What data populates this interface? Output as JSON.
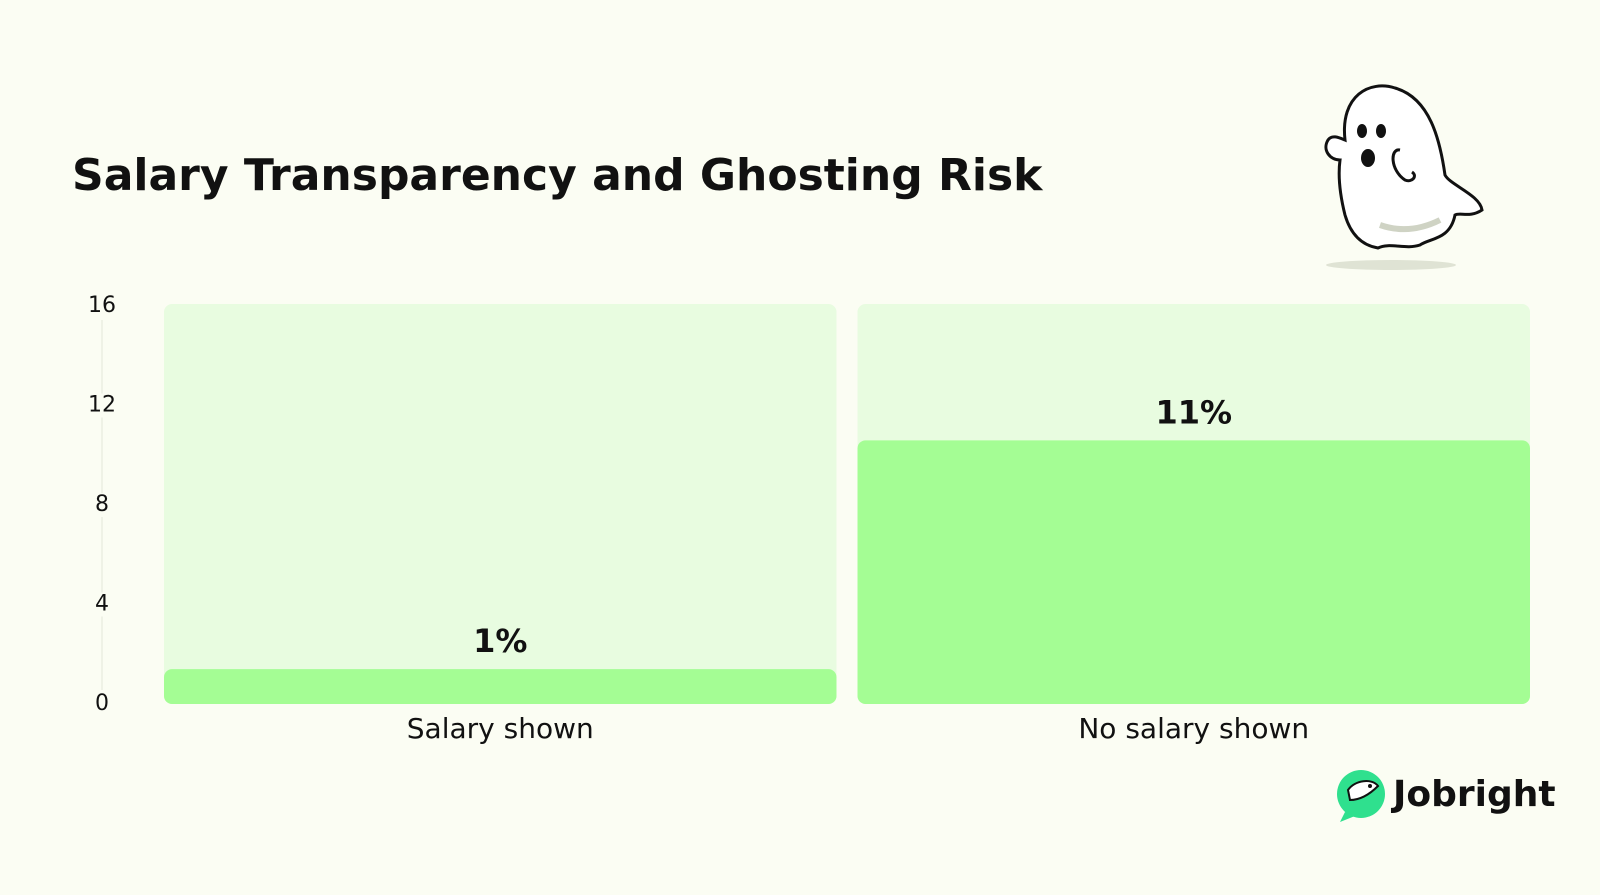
{
  "chart_data": {
    "type": "bar",
    "title": "Salary Transparency and Ghosting Risk",
    "categories": [
      "Salary shown",
      "No salary shown"
    ],
    "values": [
      1.4,
      10.6
    ],
    "value_labels": [
      "1%",
      "11%"
    ],
    "color": "#a4fd94",
    "ylim": [
      0,
      16
    ],
    "yticks": [
      0,
      4,
      8,
      12,
      16
    ],
    "grid": false
  },
  "brand": "Jobright"
}
